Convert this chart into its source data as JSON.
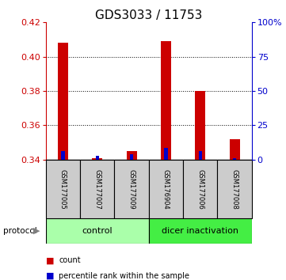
{
  "title": "GDS3033 / 11753",
  "samples": [
    "GSM177005",
    "GSM177007",
    "GSM177009",
    "GSM176904",
    "GSM177006",
    "GSM177008"
  ],
  "red_values": [
    0.408,
    0.341,
    0.345,
    0.409,
    0.38,
    0.352
  ],
  "blue_values": [
    0.345,
    0.342,
    0.343,
    0.347,
    0.345,
    0.341
  ],
  "ylim_left": [
    0.34,
    0.42
  ],
  "yticks_left": [
    0.34,
    0.36,
    0.38,
    0.4,
    0.42
  ],
  "yticks_right": [
    0,
    25,
    50,
    75,
    100
  ],
  "ylim_right": [
    0,
    100
  ],
  "protocols": [
    {
      "label": "control",
      "color": "#aaffaa"
    },
    {
      "label": "dicer inactivation",
      "color": "#44ee44"
    }
  ],
  "left_color": "#cc0000",
  "right_color": "#0000cc",
  "blue_bar_color": "#0000cc",
  "red_bar_color": "#cc0000",
  "sample_box_color": "#cccccc",
  "title_fontsize": 11,
  "tick_fontsize": 8,
  "sample_fontsize": 6,
  "proto_fontsize": 8,
  "legend_fontsize": 7
}
